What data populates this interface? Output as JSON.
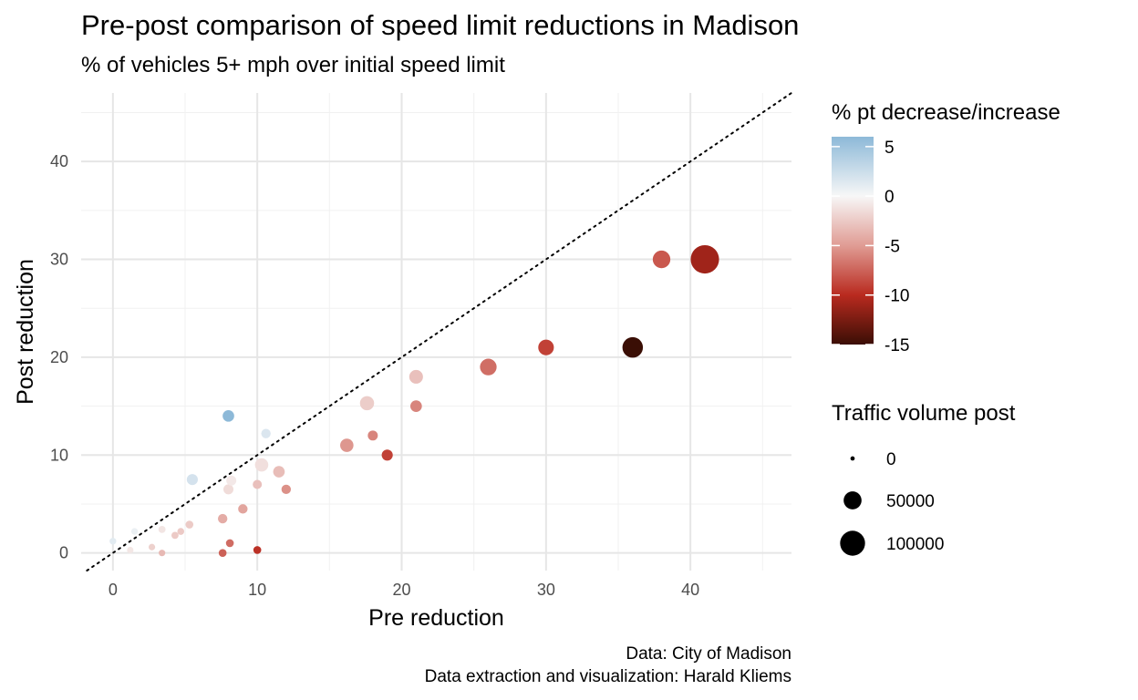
{
  "title": "Pre-post comparison of speed limit reductions in Madison",
  "subtitle": "% of vehicles 5+ mph over initial speed limit",
  "caption_line1": "Data: City of Madison",
  "caption_line2": "Data extraction and visualization: Harald Kliems",
  "chart_data": {
    "type": "scatter",
    "xlabel": "Pre reduction",
    "ylabel": "Post reduction",
    "xlim": [
      -2.2,
      47
    ],
    "ylim": [
      -1.8,
      47
    ],
    "x_ticks": [
      0,
      10,
      20,
      30,
      40
    ],
    "y_ticks": [
      0,
      10,
      20,
      30,
      40
    ],
    "grid": true,
    "reference_line": {
      "type": "identity",
      "style": "dotted"
    },
    "color_legend": {
      "title": "% pt decrease/increase",
      "range": [
        -15,
        6
      ],
      "ticks": [
        5,
        0,
        -5,
        -10,
        -15
      ],
      "stops": [
        {
          "value": 6,
          "color": "#8db9d8"
        },
        {
          "value": 0,
          "color": "#f7f7f7"
        },
        {
          "value": -5,
          "color": "#e09c94"
        },
        {
          "value": -10,
          "color": "#b92a1f"
        },
        {
          "value": -15,
          "color": "#3a0e05"
        }
      ]
    },
    "size_legend": {
      "title": "Traffic volume post",
      "entries": [
        0,
        50000,
        100000
      ]
    },
    "points": [
      {
        "x": 0.0,
        "y": 1.2,
        "volume": 1000
      },
      {
        "x": 1.2,
        "y": 0.3,
        "volume": 700
      },
      {
        "x": 1.5,
        "y": 2.2,
        "volume": 1000
      },
      {
        "x": 2.7,
        "y": 0.6,
        "volume": 800
      },
      {
        "x": 3.4,
        "y": 2.4,
        "volume": 1500
      },
      {
        "x": 3.4,
        "y": 0.0,
        "volume": 800
      },
      {
        "x": 4.3,
        "y": 1.8,
        "volume": 1500
      },
      {
        "x": 4.7,
        "y": 2.2,
        "volume": 1200
      },
      {
        "x": 5.3,
        "y": 2.9,
        "volume": 2500
      },
      {
        "x": 5.5,
        "y": 7.5,
        "volume": 8000
      },
      {
        "x": 7.6,
        "y": 3.5,
        "volume": 5000
      },
      {
        "x": 7.6,
        "y": 0.0,
        "volume": 2500
      },
      {
        "x": 8.0,
        "y": 14.0,
        "volume": 9000
      },
      {
        "x": 8.0,
        "y": 6.5,
        "volume": 6000
      },
      {
        "x": 8.2,
        "y": 7.4,
        "volume": 6000
      },
      {
        "x": 8.1,
        "y": 1.0,
        "volume": 2500
      },
      {
        "x": 9.0,
        "y": 4.5,
        "volume": 5000
      },
      {
        "x": 10.0,
        "y": 7.0,
        "volume": 4500
      },
      {
        "x": 10.0,
        "y": 0.3,
        "volume": 2500
      },
      {
        "x": 10.3,
        "y": 9.0,
        "volume": 13000
      },
      {
        "x": 10.6,
        "y": 12.2,
        "volume": 5000
      },
      {
        "x": 11.5,
        "y": 8.3,
        "volume": 9000
      },
      {
        "x": 12.0,
        "y": 6.5,
        "volume": 5000
      },
      {
        "x": 16.2,
        "y": 11.0,
        "volume": 13000
      },
      {
        "x": 17.6,
        "y": 15.3,
        "volume": 15000
      },
      {
        "x": 18.0,
        "y": 12.0,
        "volume": 6000
      },
      {
        "x": 19.0,
        "y": 10.0,
        "volume": 8000
      },
      {
        "x": 21.0,
        "y": 18.0,
        "volume": 14000
      },
      {
        "x": 21.0,
        "y": 15.0,
        "volume": 9000
      },
      {
        "x": 26.0,
        "y": 19.0,
        "volume": 22000
      },
      {
        "x": 30.0,
        "y": 21.0,
        "volume": 19000
      },
      {
        "x": 36.0,
        "y": 21.0,
        "volume": 35000
      },
      {
        "x": 38.0,
        "y": 30.0,
        "volume": 25000
      },
      {
        "x": 41.0,
        "y": 30.0,
        "volume": 70000
      }
    ],
    "point_changes": [
      1.2,
      -0.9,
      0.7,
      -2.1,
      -1,
      -3.4,
      -2.5,
      -2.5,
      -2.4,
      2,
      -4.1,
      -7.6,
      6,
      -1.5,
      -0.8,
      -7.1,
      -4.5,
      -3,
      -9.7,
      -1.3,
      1.6,
      -3.2,
      -5.5,
      -5.2,
      -2.3,
      -6,
      -9,
      -3,
      -6,
      -7,
      -9,
      -15,
      -8,
      -11
    ]
  },
  "colors": {
    "grid_major": "#e6e6e6",
    "grid_minor": "#f1f1f1",
    "tick_text": "#4d4d4d",
    "reference_line": "#000000"
  }
}
